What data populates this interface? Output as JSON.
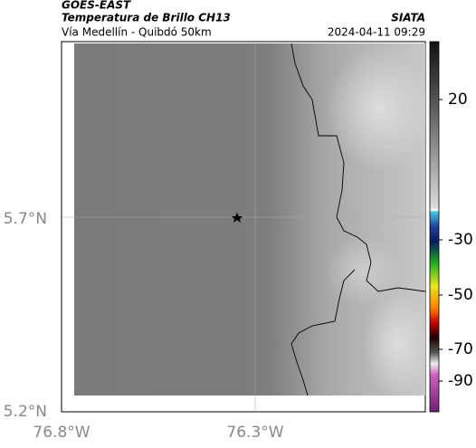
{
  "header": {
    "satellite": "GOES-EAST",
    "title": "Temperatura de Brillo CH13",
    "source": "SIATA",
    "route": "Vía Medellín - Quibdó 50km",
    "timestamp": "2024-04-11 09:29"
  },
  "map": {
    "lat_labels": [
      "5.7°N",
      "5.2°N"
    ],
    "lon_labels": [
      "76.8°W",
      "76.3°W"
    ]
  },
  "colorbar": {
    "ticks": [
      20,
      -30,
      -50,
      -70,
      -90
    ]
  }
}
